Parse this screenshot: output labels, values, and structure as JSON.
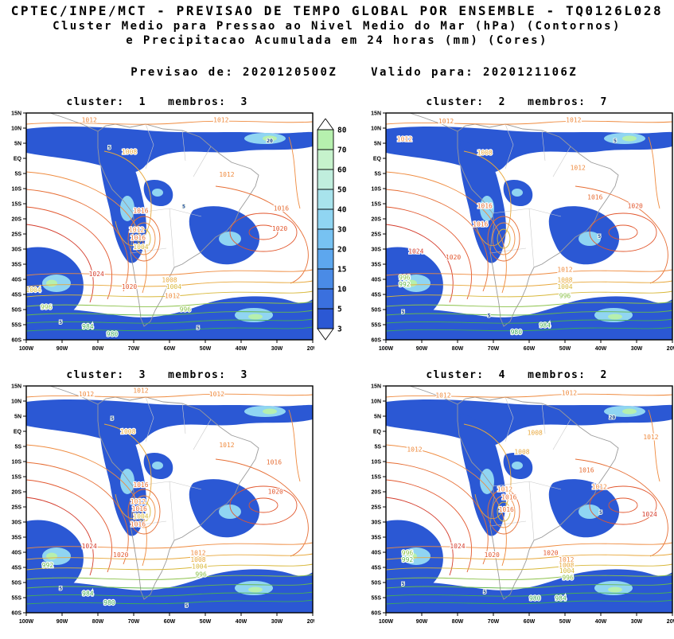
{
  "header": {
    "title": "CPTEC/INPE/MCT - PREVISAO DE TEMPO GLOBAL POR ENSEMBLE - TQ0126L028",
    "subtitle_line1": "Cluster Medio para Pressao ao Nivel Medio do Mar (hPa) (Contornos)",
    "subtitle_line2": "e Precipitacao Acumulada em 24 horas (mm) (Cores)",
    "issued_label": "Previsao de:",
    "issued_value": "2020120500Z",
    "valid_label": "Valido para:",
    "valid_value": "2020121106Z"
  },
  "panels": [
    {
      "title": "cluster:  1   membros:  3"
    },
    {
      "title": "cluster:  2   membros:  7"
    },
    {
      "title": "cluster:  3   membros:  3"
    },
    {
      "title": "cluster:  4   membros:  2"
    }
  ],
  "axes": {
    "lat_ticks": [
      "15N",
      "10N",
      "5N",
      "EQ",
      "5S",
      "10S",
      "15S",
      "20S",
      "25S",
      "30S",
      "35S",
      "40S",
      "45S",
      "50S",
      "55S",
      "60S"
    ],
    "lon_ticks": [
      "100W",
      "90W",
      "80W",
      "70W",
      "60W",
      "50W",
      "40W",
      "30W",
      "20W"
    ]
  },
  "colorbar": {
    "tick_values": [
      "80",
      "70",
      "60",
      "50",
      "40",
      "30",
      "20",
      "15",
      "10",
      "5",
      "3"
    ],
    "box_colors_top_to_bottom": [
      "#b6f0ae",
      "#c6f2cc",
      "#c0eedd",
      "#a8e3ec",
      "#90d5f2",
      "#77c2f2",
      "#5da7ee",
      "#4a8be6",
      "#3a70de",
      "#2b58d4"
    ]
  },
  "contour_colors": {
    "1024": "#d43c2c",
    "1020": "#e2572e",
    "1016": "#e66d33",
    "1012": "#ef8b3f",
    "1008": "#e8a83c",
    "1004": "#d8b83a",
    "1000": "#b8c444",
    "996": "#8cc24a",
    "992": "#66b84e",
    "984": "#47ad56",
    "980": "#3aa85e"
  },
  "chart_data": {
    "type": "heatmap",
    "title": "Cluster Medio para Pressao ao Nivel Medio do Mar (hPa) (Contornos) e Precipitacao Acumulada em 24 horas (mm) (Cores)",
    "model": "TQ0126L028",
    "init_time": "2020120500Z",
    "valid_time": "2020121106Z",
    "lat_range": [
      "60S",
      "15N"
    ],
    "lon_range": [
      "100W",
      "20W"
    ],
    "precip_levels_mm": [
      3,
      5,
      10,
      15,
      20,
      30,
      40,
      50,
      60,
      70,
      80
    ],
    "pressure_contours_hpa": [
      980,
      984,
      992,
      996,
      1000,
      1004,
      1008,
      1012,
      1016,
      1020,
      1024
    ],
    "legend_position": "between top panels",
    "panels": [
      {
        "cluster": 1,
        "membros": 3,
        "labels": [
          [
            "1012",
            0.22,
            0.04
          ],
          [
            "1012",
            0.68,
            0.04
          ],
          [
            "5",
            0.29,
            0.16
          ],
          [
            "1008",
            0.36,
            0.18
          ],
          [
            "20",
            0.85,
            0.13
          ],
          [
            "1012",
            0.7,
            0.28
          ],
          [
            "5",
            0.55,
            0.42
          ],
          [
            "1016",
            0.4,
            0.44
          ],
          [
            "1016",
            0.89,
            0.43
          ],
          [
            "1012",
            0.385,
            0.525
          ],
          [
            "1016",
            0.39,
            0.56
          ],
          [
            "1004",
            0.4,
            0.6
          ],
          [
            "1020",
            0.885,
            0.52
          ],
          [
            "1024",
            0.245,
            0.72
          ],
          [
            "1020",
            0.36,
            0.775
          ],
          [
            "1008",
            0.5,
            0.745
          ],
          [
            "1004",
            0.515,
            0.775
          ],
          [
            "1012",
            0.51,
            0.815
          ],
          [
            "996",
            0.555,
            0.875
          ],
          [
            "1004",
            0.025,
            0.79
          ],
          [
            "996",
            0.07,
            0.865
          ],
          [
            "5",
            0.12,
            0.93
          ],
          [
            "984",
            0.215,
            0.95
          ],
          [
            "980",
            0.3,
            0.985
          ],
          [
            "5",
            0.6,
            0.955
          ]
        ]
      },
      {
        "cluster": 2,
        "membros": 7,
        "labels": [
          [
            "1012",
            0.21,
            0.045
          ],
          [
            "1012",
            0.655,
            0.04
          ],
          [
            "1012",
            0.065,
            0.125
          ],
          [
            "5",
            0.8,
            0.13
          ],
          [
            "1008",
            0.345,
            0.185
          ],
          [
            "1012",
            0.67,
            0.25
          ],
          [
            "1016",
            0.73,
            0.38
          ],
          [
            "1016",
            0.345,
            0.42
          ],
          [
            "1020",
            0.87,
            0.42
          ],
          [
            "1016",
            0.33,
            0.5
          ],
          [
            "5",
            0.745,
            0.55
          ],
          [
            "1024",
            0.105,
            0.62
          ],
          [
            "1020",
            0.235,
            0.645
          ],
          [
            "1012",
            0.625,
            0.7
          ],
          [
            "1008",
            0.625,
            0.745
          ],
          [
            "1004",
            0.625,
            0.775
          ],
          [
            "996",
            0.065,
            0.735
          ],
          [
            "992",
            0.065,
            0.765
          ],
          [
            "996",
            0.625,
            0.815
          ],
          [
            "5",
            0.06,
            0.885
          ],
          [
            "5",
            0.36,
            0.9
          ],
          [
            "984",
            0.555,
            0.945
          ],
          [
            "980",
            0.455,
            0.975
          ]
        ]
      },
      {
        "cluster": 3,
        "membros": 3,
        "labels": [
          [
            "1012",
            0.21,
            0.045
          ],
          [
            "1012",
            0.4,
            0.03
          ],
          [
            "1012",
            0.665,
            0.045
          ],
          [
            "5",
            0.3,
            0.15
          ],
          [
            "1008",
            0.355,
            0.21
          ],
          [
            "1012",
            0.7,
            0.27
          ],
          [
            "1016",
            0.865,
            0.345
          ],
          [
            "1016",
            0.4,
            0.445
          ],
          [
            "1020",
            0.87,
            0.475
          ],
          [
            "1012",
            0.39,
            0.52
          ],
          [
            "1016",
            0.395,
            0.55
          ],
          [
            "1004",
            0.4,
            0.585
          ],
          [
            "1016",
            0.39,
            0.62
          ],
          [
            "1024",
            0.22,
            0.715
          ],
          [
            "1020",
            0.33,
            0.755
          ],
          [
            "1012",
            0.6,
            0.745
          ],
          [
            "1008",
            0.6,
            0.775
          ],
          [
            "1004",
            0.605,
            0.805
          ],
          [
            "996",
            0.61,
            0.84
          ],
          [
            "992",
            0.075,
            0.8
          ],
          [
            "5",
            0.12,
            0.9
          ],
          [
            "984",
            0.215,
            0.925
          ],
          [
            "980",
            0.29,
            0.965
          ],
          [
            "5",
            0.56,
            0.975
          ]
        ]
      },
      {
        "cluster": 4,
        "membros": 2,
        "labels": [
          [
            "1012",
            0.2,
            0.05
          ],
          [
            "1012",
            0.64,
            0.04
          ],
          [
            "20",
            0.79,
            0.145
          ],
          [
            "1008",
            0.52,
            0.215
          ],
          [
            "1012",
            0.925,
            0.235
          ],
          [
            "1012",
            0.1,
            0.29
          ],
          [
            "1008",
            0.475,
            0.3
          ],
          [
            "1016",
            0.7,
            0.38
          ],
          [
            "1012",
            0.745,
            0.455
          ],
          [
            "1012",
            0.415,
            0.465
          ],
          [
            "1016",
            0.43,
            0.5
          ],
          [
            "1016",
            0.42,
            0.555
          ],
          [
            "5",
            0.75,
            0.565
          ],
          [
            "1024",
            0.92,
            0.575
          ],
          [
            "1024",
            0.25,
            0.715
          ],
          [
            "1020",
            0.37,
            0.755
          ],
          [
            "1020",
            0.575,
            0.745
          ],
          [
            "1012",
            0.63,
            0.775
          ],
          [
            "1008",
            0.63,
            0.8
          ],
          [
            "1004",
            0.632,
            0.825
          ],
          [
            "996",
            0.635,
            0.855
          ],
          [
            "996",
            0.075,
            0.745
          ],
          [
            "992",
            0.075,
            0.775
          ],
          [
            "5",
            0.06,
            0.88
          ],
          [
            "5",
            0.345,
            0.915
          ],
          [
            "980",
            0.52,
            0.945
          ],
          [
            "984",
            0.61,
            0.945
          ]
        ]
      }
    ]
  }
}
